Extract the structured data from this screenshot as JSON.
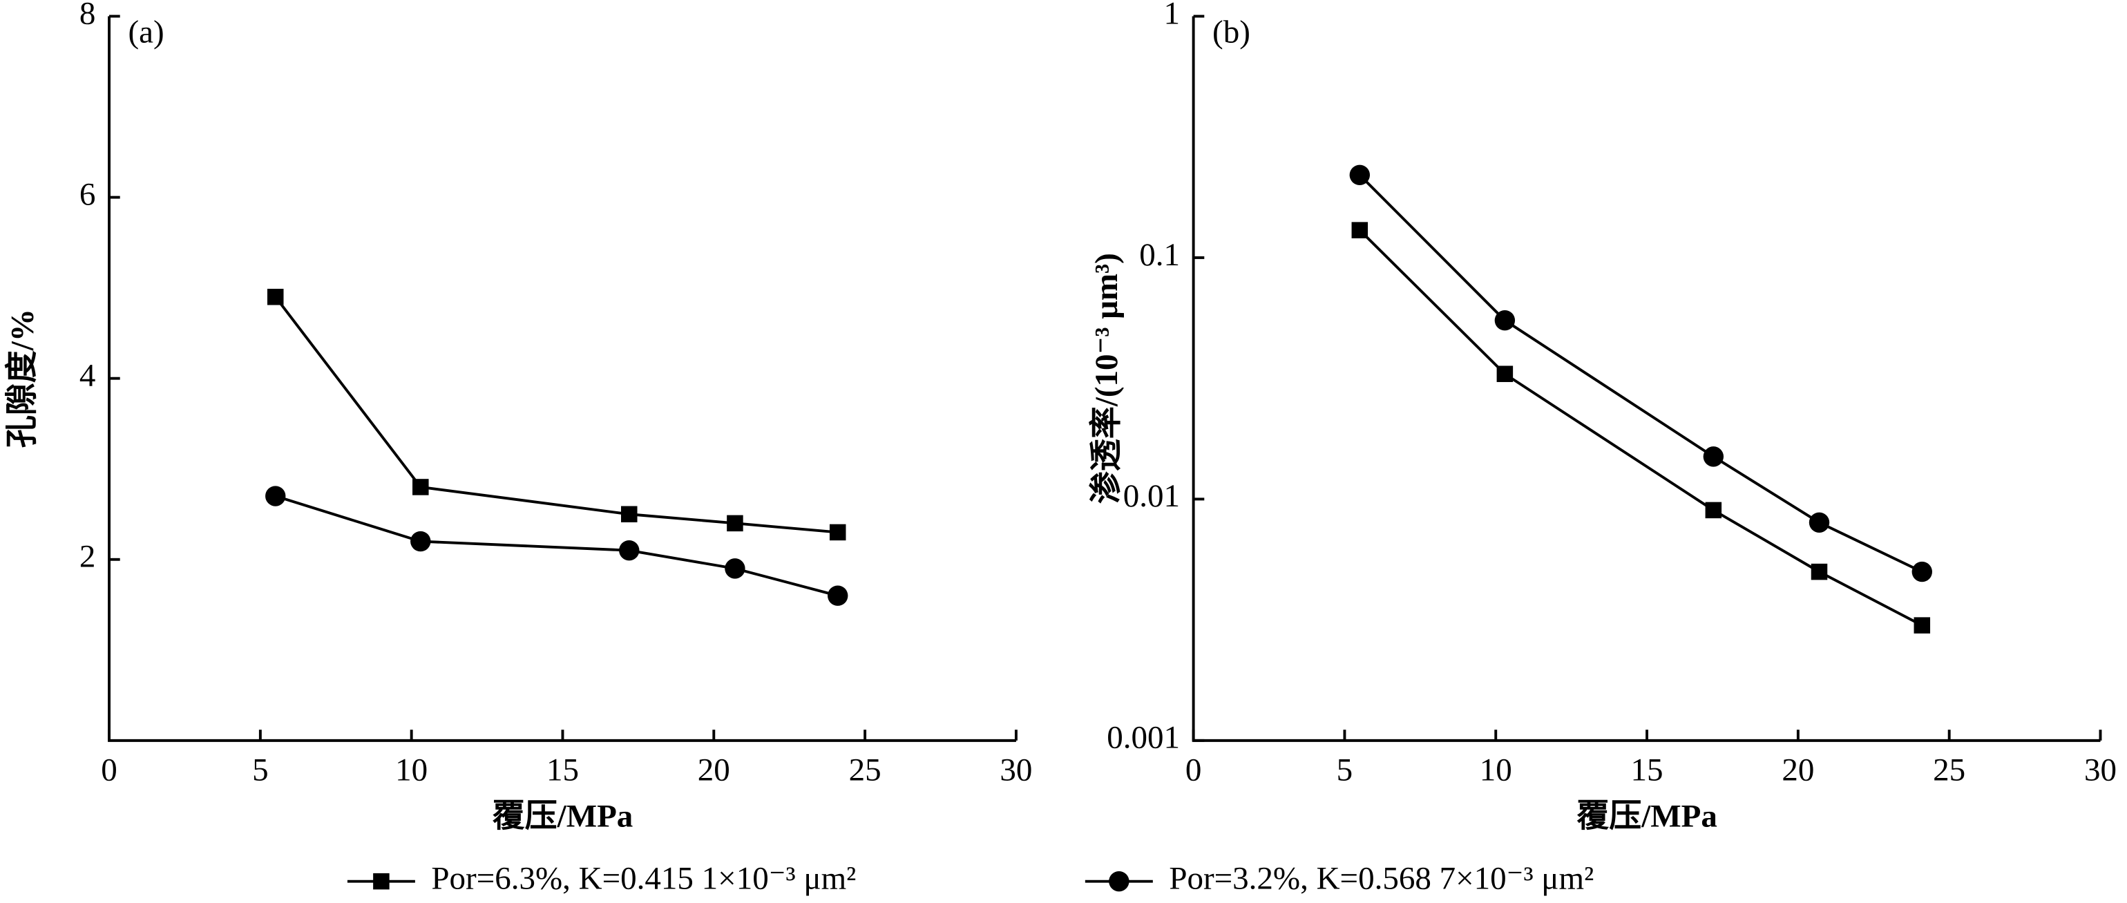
{
  "chart_data": [
    {
      "type": "line",
      "title": "(a)",
      "x_label": "覆压/MPa",
      "y_label": "孔隙度/%",
      "x": [
        5.5,
        10.3,
        17.2,
        20.7,
        24.1
      ],
      "series": [
        {
          "name": "Por=6.3%, K=0.415 1×10⁻³ μm²",
          "color": "#000000",
          "marker": "square",
          "values": [
            4.9,
            2.8,
            2.5,
            2.4,
            2.3
          ]
        },
        {
          "name": "Por=3.2%, K=0.568 7×10⁻³ μm²",
          "color": "#000000",
          "marker": "circle",
          "values": [
            2.7,
            2.2,
            2.1,
            1.9,
            1.6
          ]
        }
      ],
      "xlim": [
        0,
        30
      ],
      "xticks": [
        0,
        5,
        10,
        15,
        20,
        25,
        30
      ],
      "ylim": [
        0,
        8
      ],
      "yticks": [
        2,
        4,
        6,
        8
      ],
      "log_y": false
    },
    {
      "type": "line",
      "title": "(b)",
      "x_label": "覆压/MPa",
      "y_label": "渗透率/(10⁻³ μm³)",
      "x": [
        5.5,
        10.3,
        17.2,
        20.7,
        24.1
      ],
      "series": [
        {
          "name": "Por=6.3%, K=0.415 1×10⁻³ μm²",
          "color": "#000000",
          "marker": "square",
          "values": [
            0.13,
            0.033,
            0.009,
            0.005,
            0.003
          ]
        },
        {
          "name": "Por=3.2%, K=0.568 7×10⁻³ μm²",
          "color": "#000000",
          "marker": "circle",
          "values": [
            0.22,
            0.055,
            0.015,
            0.008,
            0.005
          ]
        }
      ],
      "xlim": [
        0,
        30
      ],
      "xticks": [
        0,
        5,
        10,
        15,
        20,
        25,
        30
      ],
      "ylim": [
        0.001,
        1
      ],
      "yticks": [
        0.001,
        0.01,
        0.1,
        1
      ],
      "log_y": true
    }
  ]
}
